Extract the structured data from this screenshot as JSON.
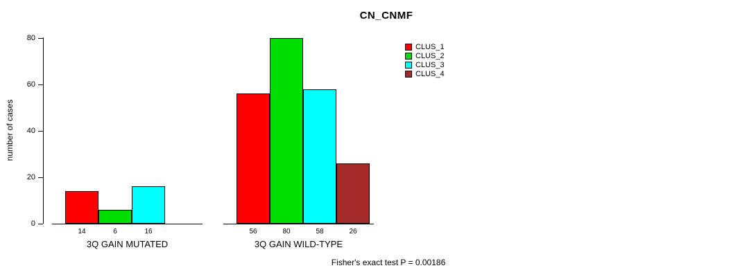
{
  "title": "CN_CNMF",
  "chart_data": {
    "type": "bar",
    "title": "CN_CNMF",
    "xlabel": "",
    "ylabel": "number of cases",
    "ylim": [
      0,
      80
    ],
    "yticks": [
      0,
      20,
      40,
      60,
      80
    ],
    "grid": false,
    "legend_position": "top-right",
    "series": [
      "CLUS_1",
      "CLUS_2",
      "CLUS_3",
      "CLUS_4"
    ],
    "colors": [
      "#FF0000",
      "#00DD00",
      "#00FFFF",
      "#A52A2A"
    ],
    "categories": [
      "3Q GAIN MUTATED",
      "3Q GAIN WILD-TYPE"
    ],
    "groups": [
      {
        "label": "3Q GAIN MUTATED",
        "values": [
          14,
          6,
          16,
          null
        ],
        "bar_labels": [
          "14",
          "6",
          "16"
        ]
      },
      {
        "label": "3Q GAIN WILD-TYPE",
        "values": [
          56,
          80,
          58,
          26
        ],
        "bar_labels": [
          "56",
          "80",
          "58",
          "26"
        ]
      }
    ],
    "annotation": "Fisher's exact test P = 0.00186"
  }
}
